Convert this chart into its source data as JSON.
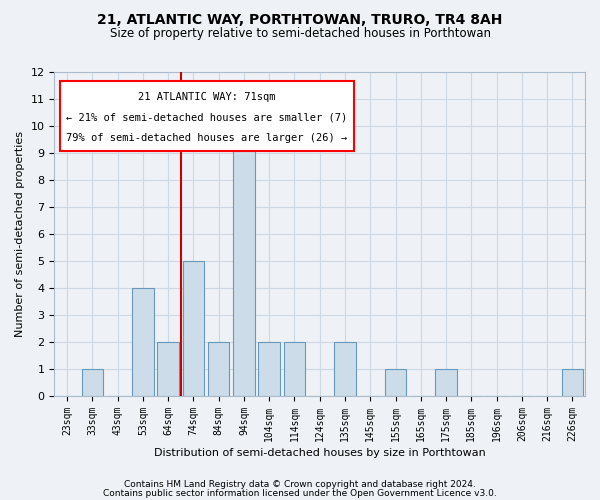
{
  "title_line1": "21, ATLANTIC WAY, PORTHTOWAN, TRURO, TR4 8AH",
  "title_line2": "Size of property relative to semi-detached houses in Porthtowan",
  "xlabel": "Distribution of semi-detached houses by size in Porthtowan",
  "ylabel": "Number of semi-detached properties",
  "categories": [
    "23sqm",
    "33sqm",
    "43sqm",
    "53sqm",
    "64sqm",
    "74sqm",
    "84sqm",
    "94sqm",
    "104sqm",
    "114sqm",
    "124sqm",
    "135sqm",
    "145sqm",
    "155sqm",
    "165sqm",
    "175sqm",
    "185sqm",
    "196sqm",
    "206sqm",
    "216sqm",
    "226sqm"
  ],
  "values": [
    0,
    1,
    0,
    4,
    2,
    5,
    2,
    10,
    2,
    2,
    0,
    2,
    0,
    1,
    0,
    1,
    0,
    0,
    0,
    0,
    1
  ],
  "bar_color": "#ccdce8",
  "bar_edge_color": "#6699bb",
  "vline_pos": 4.5,
  "vline_color": "#cc0000",
  "annotation_title": "21 ATLANTIC WAY: 71sqm",
  "annotation_line1": "← 21% of semi-detached houses are smaller (7)",
  "annotation_line2": "79% of semi-detached houses are larger (26) →",
  "ylim_max": 12,
  "yticks": [
    0,
    1,
    2,
    3,
    4,
    5,
    6,
    7,
    8,
    9,
    10,
    11,
    12
  ],
  "grid_color": "#ccd8e4",
  "footer_line1": "Contains HM Land Registry data © Crown copyright and database right 2024.",
  "footer_line2": "Contains public sector information licensed under the Open Government Licence v3.0.",
  "bg_color": "#eef2f6",
  "title1_fontsize": 10,
  "title2_fontsize": 8.5,
  "ann_fontsize": 7.5,
  "ylabel_fontsize": 8,
  "xlabel_fontsize": 8,
  "tick_fontsize": 7,
  "ytick_fontsize": 8,
  "footer_fontsize": 6.5
}
